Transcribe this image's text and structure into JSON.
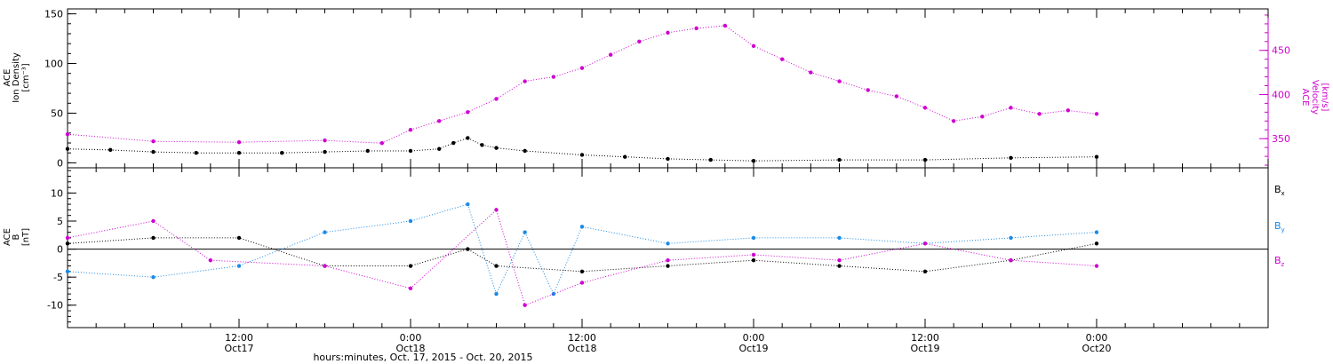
{
  "figure": {
    "footer": "hours:minutes, Oct. 17, 2015 - Oct. 20, 2015"
  },
  "colors": {
    "black": "#000000",
    "magenta": "#d000d0",
    "blue": "#1a8ae6"
  },
  "chart_data": [
    {
      "type": "scatter",
      "panel": "top",
      "left_axis": {
        "label_lines": [
          "ACE",
          "Ion Density",
          "[cm⁻³]"
        ],
        "range": [
          -5,
          155
        ],
        "ticks": [
          0,
          50,
          100,
          150
        ],
        "tick_labels": [
          "0",
          "50",
          "100",
          "150"
        ]
      },
      "right_axis": {
        "label_lines": [
          "ACE",
          "Velocity",
          "[km/s]"
        ],
        "range": [
          317,
          497
        ],
        "ticks": [
          350,
          400,
          450
        ],
        "tick_labels": [
          "350",
          "400",
          "450"
        ]
      },
      "x_range": [
        "2015-10-17 00:00",
        "2015-10-20 12:00"
      ],
      "series": [
        {
          "color": "black",
          "axis": "left",
          "points": [
            [
              "2015-10-17 00:00",
              14
            ],
            [
              "2015-10-17 03:00",
              13
            ],
            [
              "2015-10-17 06:00",
              11
            ],
            [
              "2015-10-17 09:00",
              10
            ],
            [
              "2015-10-17 12:00",
              10
            ],
            [
              "2015-10-17 15:00",
              10
            ],
            [
              "2015-10-17 18:00",
              11
            ],
            [
              "2015-10-17 21:00",
              12
            ],
            [
              "2015-10-18 00:00",
              12
            ],
            [
              "2015-10-18 02:00",
              14
            ],
            [
              "2015-10-18 03:00",
              20
            ],
            [
              "2015-10-18 04:00",
              25
            ],
            [
              "2015-10-18 05:00",
              18
            ],
            [
              "2015-10-18 06:00",
              15
            ],
            [
              "2015-10-18 08:00",
              12
            ],
            [
              "2015-10-18 12:00",
              8
            ],
            [
              "2015-10-18 15:00",
              6
            ],
            [
              "2015-10-18 18:00",
              4
            ],
            [
              "2015-10-18 21:00",
              3
            ],
            [
              "2015-10-19 00:00",
              2
            ],
            [
              "2015-10-19 06:00",
              3
            ],
            [
              "2015-10-19 12:00",
              3
            ],
            [
              "2015-10-19 18:00",
              5
            ],
            [
              "2015-10-20 00:00",
              6
            ]
          ]
        },
        {
          "color": "magenta",
          "axis": "right",
          "points": [
            [
              "2015-10-17 00:00",
              355
            ],
            [
              "2015-10-17 06:00",
              347
            ],
            [
              "2015-10-17 12:00",
              346
            ],
            [
              "2015-10-17 18:00",
              348
            ],
            [
              "2015-10-17 22:00",
              345
            ],
            [
              "2015-10-18 00:00",
              360
            ],
            [
              "2015-10-18 02:00",
              370
            ],
            [
              "2015-10-18 04:00",
              380
            ],
            [
              "2015-10-18 06:00",
              395
            ],
            [
              "2015-10-18 08:00",
              415
            ],
            [
              "2015-10-18 10:00",
              420
            ],
            [
              "2015-10-18 12:00",
              430
            ],
            [
              "2015-10-18 14:00",
              445
            ],
            [
              "2015-10-18 16:00",
              460
            ],
            [
              "2015-10-18 18:00",
              470
            ],
            [
              "2015-10-18 20:00",
              475
            ],
            [
              "2015-10-18 22:00",
              478
            ],
            [
              "2015-10-19 00:00",
              455
            ],
            [
              "2015-10-19 02:00",
              440
            ],
            [
              "2015-10-19 04:00",
              425
            ],
            [
              "2015-10-19 06:00",
              415
            ],
            [
              "2015-10-19 08:00",
              405
            ],
            [
              "2015-10-19 10:00",
              398
            ],
            [
              "2015-10-19 12:00",
              385
            ],
            [
              "2015-10-19 14:00",
              370
            ],
            [
              "2015-10-19 16:00",
              375
            ],
            [
              "2015-10-19 18:00",
              385
            ],
            [
              "2015-10-19 20:00",
              378
            ],
            [
              "2015-10-19 22:00",
              382
            ],
            [
              "2015-10-20 00:00",
              378
            ]
          ]
        }
      ]
    },
    {
      "type": "scatter",
      "panel": "bottom",
      "left_axis": {
        "label_lines": [
          "ACE",
          "B",
          "[nT]"
        ],
        "range": [
          -14,
          14.5
        ],
        "ticks": [
          -10,
          -5,
          0,
          5,
          10
        ],
        "tick_labels": [
          "-10",
          "-5",
          "0",
          "5",
          "10"
        ]
      },
      "zero_line": true,
      "x_axis": {
        "ticks": [
          "2015-10-17 12:00",
          "2015-10-18 00:00",
          "2015-10-18 12:00",
          "2015-10-19 00:00",
          "2015-10-19 12:00",
          "2015-10-20 00:00"
        ],
        "tick_labels_time": [
          "12:00",
          "0:00",
          "12:00",
          "0:00",
          "12:00",
          "0:00"
        ],
        "tick_labels_date": [
          "Oct17",
          "Oct18",
          "Oct18",
          "Oct19",
          "Oct19",
          "Oct20"
        ]
      },
      "x_range": [
        "2015-10-17 00:00",
        "2015-10-20 12:00"
      ],
      "legend": {
        "position": "right",
        "entries": [
          "B",
          "B",
          "B"
        ],
        "subscripts": [
          "x",
          "y",
          "z"
        ]
      },
      "series": [
        {
          "name": "Bx",
          "color": "black",
          "points": [
            [
              "2015-10-17 00:00",
              1
            ],
            [
              "2015-10-17 06:00",
              2
            ],
            [
              "2015-10-17 12:00",
              2
            ],
            [
              "2015-10-17 18:00",
              -3
            ],
            [
              "2015-10-18 00:00",
              -3
            ],
            [
              "2015-10-18 04:00",
              0
            ],
            [
              "2015-10-18 06:00",
              -3
            ],
            [
              "2015-10-18 12:00",
              -4
            ],
            [
              "2015-10-18 18:00",
              -3
            ],
            [
              "2015-10-19 00:00",
              -2
            ],
            [
              "2015-10-19 06:00",
              -3
            ],
            [
              "2015-10-19 12:00",
              -4
            ],
            [
              "2015-10-19 18:00",
              -2
            ],
            [
              "2015-10-20 00:00",
              1
            ]
          ]
        },
        {
          "name": "By",
          "color": "blue",
          "points": [
            [
              "2015-10-17 00:00",
              -4
            ],
            [
              "2015-10-17 06:00",
              -5
            ],
            [
              "2015-10-17 12:00",
              -3
            ],
            [
              "2015-10-17 18:00",
              3
            ],
            [
              "2015-10-18 00:00",
              5
            ],
            [
              "2015-10-18 04:00",
              8
            ],
            [
              "2015-10-18 06:00",
              -8
            ],
            [
              "2015-10-18 08:00",
              3
            ],
            [
              "2015-10-18 10:00",
              -8
            ],
            [
              "2015-10-18 12:00",
              4
            ],
            [
              "2015-10-18 18:00",
              1
            ],
            [
              "2015-10-19 00:00",
              2
            ],
            [
              "2015-10-19 06:00",
              2
            ],
            [
              "2015-10-19 12:00",
              1
            ],
            [
              "2015-10-19 18:00",
              2
            ],
            [
              "2015-10-20 00:00",
              3
            ]
          ]
        },
        {
          "name": "Bz",
          "color": "magenta",
          "points": [
            [
              "2015-10-17 00:00",
              2
            ],
            [
              "2015-10-17 06:00",
              5
            ],
            [
              "2015-10-17 10:00",
              -2
            ],
            [
              "2015-10-17 18:00",
              -3
            ],
            [
              "2015-10-18 00:00",
              -7
            ],
            [
              "2015-10-18 06:00",
              7
            ],
            [
              "2015-10-18 08:00",
              -10
            ],
            [
              "2015-10-18 12:00",
              -6
            ],
            [
              "2015-10-18 18:00",
              -2
            ],
            [
              "2015-10-19 00:00",
              -1
            ],
            [
              "2015-10-19 06:00",
              -2
            ],
            [
              "2015-10-19 12:00",
              1
            ],
            [
              "2015-10-19 18:00",
              -2
            ],
            [
              "2015-10-20 00:00",
              -3
            ]
          ]
        }
      ]
    }
  ]
}
